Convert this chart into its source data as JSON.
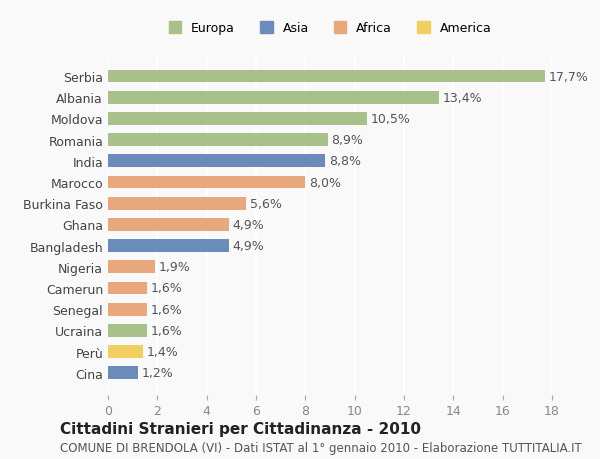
{
  "categories": [
    "Serbia",
    "Albania",
    "Moldova",
    "Romania",
    "India",
    "Marocco",
    "Burkina Faso",
    "Ghana",
    "Bangladesh",
    "Nigeria",
    "Camerun",
    "Senegal",
    "Ucraina",
    "Perù",
    "Cina"
  ],
  "values": [
    17.7,
    13.4,
    10.5,
    8.9,
    8.8,
    8.0,
    5.6,
    4.9,
    4.9,
    1.9,
    1.6,
    1.6,
    1.6,
    1.4,
    1.2
  ],
  "labels": [
    "17,7%",
    "13,4%",
    "10,5%",
    "8,9%",
    "8,8%",
    "8,0%",
    "5,6%",
    "4,9%",
    "4,9%",
    "1,9%",
    "1,6%",
    "1,6%",
    "1,6%",
    "1,4%",
    "1,2%"
  ],
  "continents": [
    "Europa",
    "Europa",
    "Europa",
    "Europa",
    "Asia",
    "Africa",
    "Africa",
    "Africa",
    "Asia",
    "Africa",
    "Africa",
    "Africa",
    "Europa",
    "America",
    "Asia"
  ],
  "colors": {
    "Europa": "#a8c08a",
    "Asia": "#6b8cba",
    "Africa": "#e8a87c",
    "America": "#f0d060"
  },
  "legend_order": [
    "Europa",
    "Asia",
    "Africa",
    "America"
  ],
  "title": "Cittadini Stranieri per Cittadinanza - 2010",
  "subtitle": "COMUNE DI BRENDOLA (VI) - Dati ISTAT al 1° gennaio 2010 - Elaborazione TUTTITALIA.IT",
  "xlim": [
    0,
    18
  ],
  "xticks": [
    0,
    2,
    4,
    6,
    8,
    10,
    12,
    14,
    16,
    18
  ],
  "background_color": "#f9f9f9",
  "grid_color": "#ffffff",
  "bar_height": 0.6,
  "label_fontsize": 9,
  "title_fontsize": 11,
  "subtitle_fontsize": 8.5,
  "tick_fontsize": 9
}
